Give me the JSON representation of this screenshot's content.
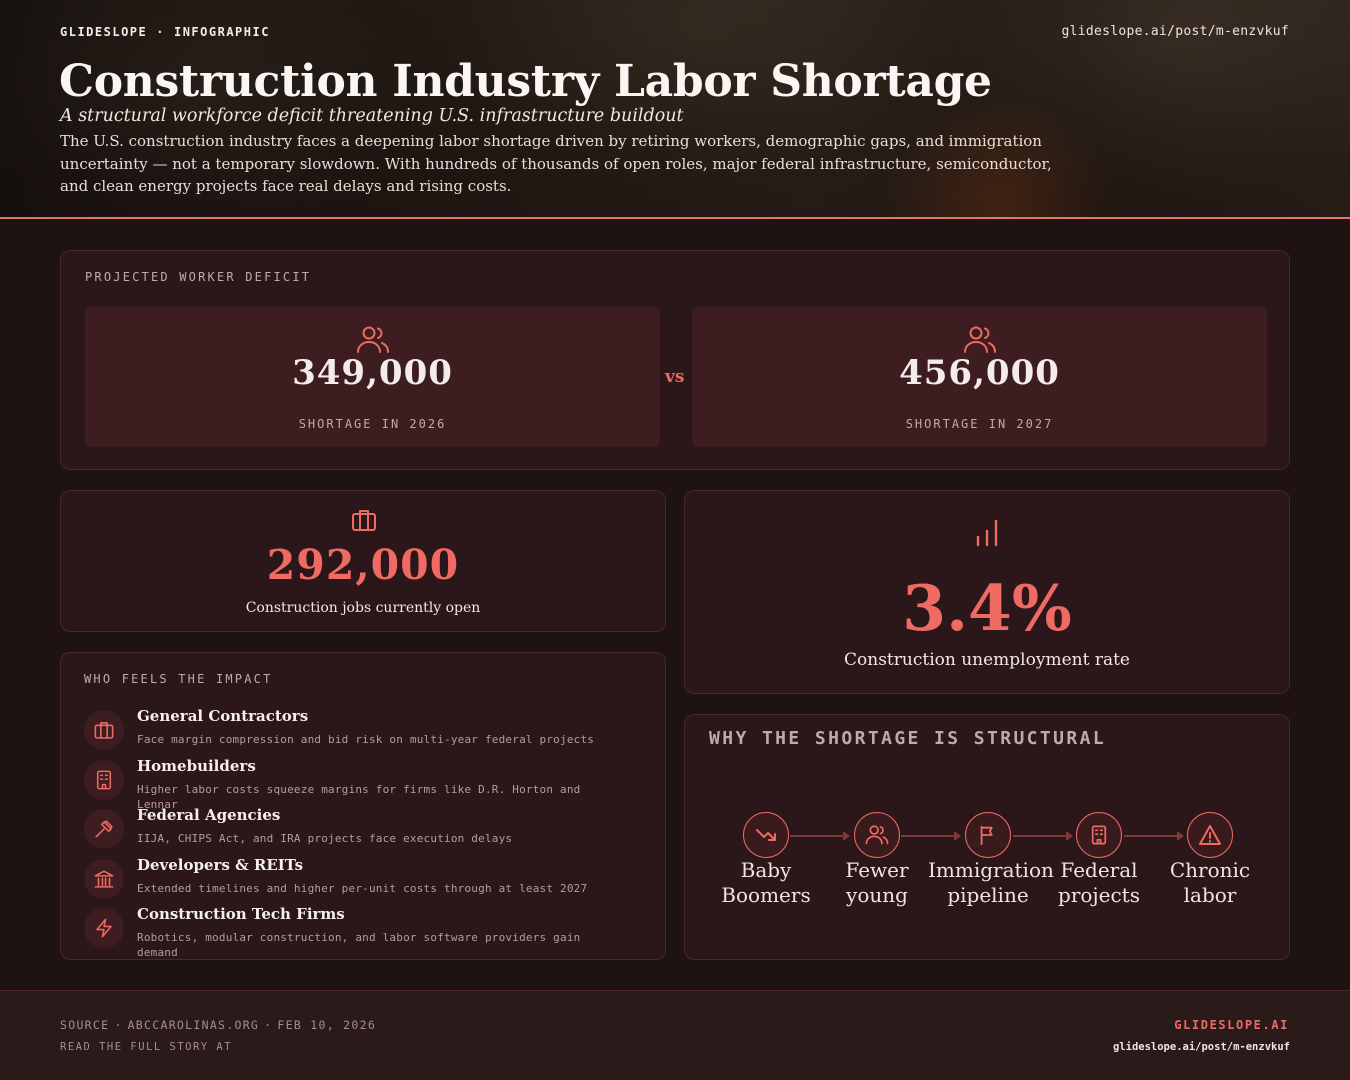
{
  "header": {
    "brand": "GLIDESLOPE",
    "separator": "·",
    "kind": "INFOGRAPHIC",
    "url": "glideslope.ai/post/m-enzvkuf",
    "title": "Construction Industry Labor Shortage",
    "subtitle": "A structural workforce deficit threatening U.S. infrastructure buildout",
    "summary": "The U.S. construction industry faces a deepening labor shortage driven by retiring workers, demographic gaps, and immigration uncertainty — not a temporary slowdown. With hundreds of thousands of open roles, major federal infrastructure, semiconductor, and clean energy projects face real delays and rising costs."
  },
  "deficit": {
    "label": "PROJECTED WORKER DEFICIT",
    "vs": "vs",
    "left": {
      "value": "349,000",
      "caption": "SHORTAGE IN 2026",
      "icon": "users-icon"
    },
    "right": {
      "value": "456,000",
      "caption": "SHORTAGE IN 2027",
      "icon": "users-icon"
    }
  },
  "jobs": {
    "value": "292,000",
    "caption": "Construction jobs currently open",
    "icon": "briefcase-icon"
  },
  "unemployment": {
    "value": "3.4%",
    "caption": "Construction unemployment rate",
    "icon": "bar-chart-icon"
  },
  "impact": {
    "label": "WHO FEELS THE IMPACT",
    "items": [
      {
        "title": "General Contractors",
        "desc": "Face margin compression and bid risk on multi-year federal projects",
        "icon": "briefcase-icon"
      },
      {
        "title": "Homebuilders",
        "desc": "Higher labor costs squeeze margins for firms like D.R. Horton and Lennar",
        "icon": "building-icon"
      },
      {
        "title": "Federal Agencies",
        "desc": "IIJA, CHIPS Act, and IRA projects face execution delays",
        "icon": "gavel-icon"
      },
      {
        "title": "Developers & REITs",
        "desc": "Extended timelines and higher per-unit costs through at least 2027",
        "icon": "bank-icon"
      },
      {
        "title": "Construction Tech Firms",
        "desc": "Robotics, modular construction, and labor software providers gain demand",
        "icon": "lightning-icon"
      }
    ]
  },
  "structural": {
    "label": "WHY THE SHORTAGE IS STRUCTURAL",
    "steps": [
      {
        "label": "Baby Boomers",
        "icon": "trending-down-icon"
      },
      {
        "label": "Fewer young",
        "icon": "users-icon"
      },
      {
        "label": "Immigration pipeline",
        "icon": "flag-icon"
      },
      {
        "label": "Federal projects",
        "icon": "building-icon"
      },
      {
        "label": "Chronic labor",
        "icon": "warning-icon"
      }
    ]
  },
  "footer": {
    "source_label": "SOURCE",
    "separator": "·",
    "source": "ABCCAROLINAS.ORG",
    "date": "FEB 10, 2026",
    "read_more": "READ THE FULL STORY AT",
    "brand": "GLIDESLOPE.AI",
    "url": "glideslope.ai/post/m-enzvkuf"
  },
  "colors": {
    "accent": "#ee6a63",
    "background": "#1e1212",
    "card": "#2b1719",
    "stat_box": "#3d1d20",
    "border": "#4a2729"
  }
}
